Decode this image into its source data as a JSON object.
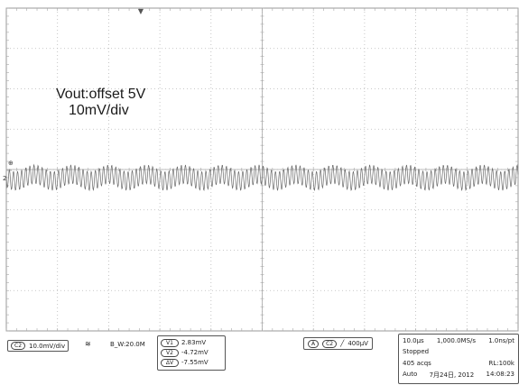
{
  "annotations": {
    "line1": "Vout:offset 5V",
    "line2": "10mV/div"
  },
  "chart_data": {
    "type": "line",
    "title": "",
    "xlabel": "",
    "ylabel": "",
    "grid": true,
    "x_divisions": 10,
    "y_divisions": 8,
    "x_unit_per_div": "10.0µs",
    "y_unit_per_div": "10.0mV",
    "x_range_us": [
      0,
      100
    ],
    "y_range_mV": [
      -40,
      40
    ],
    "series": [
      {
        "trace_offset_div": 0.0,
        "ripple_pp_mV": 4.72,
        "ripple_period_us": 0.8,
        "color": "#6a6a6a"
      }
    ],
    "markers": {
      "channel": "2",
      "trigger_top": "▼",
      "level": "⊕"
    }
  },
  "status_bar": {
    "channel_label": "C2",
    "channel_scale": "10.0mV/div",
    "bw_icon": "≋",
    "bw_label": "B_W:20.0M",
    "cursors": [
      {
        "tag": "V1",
        "value": "2.83mV"
      },
      {
        "tag": "V2",
        "value": "-4.72mV"
      },
      {
        "tag": "ΔV",
        "value": "-7.55mV"
      }
    ],
    "trigger": {
      "mode_tag": "A",
      "source_tag": "C2",
      "slope_icon": "╱",
      "level": "400µV"
    },
    "acquisition": {
      "timebase": "10.0µs",
      "sample_rate": "1,000.0MS/s",
      "resolution": "1.0ns/pt",
      "state": "Stopped",
      "acqs": "405 acqs",
      "record_length": "RL:100k",
      "mode": "Auto",
      "date": "7月24日, 2012",
      "time": "14:08:23"
    }
  }
}
